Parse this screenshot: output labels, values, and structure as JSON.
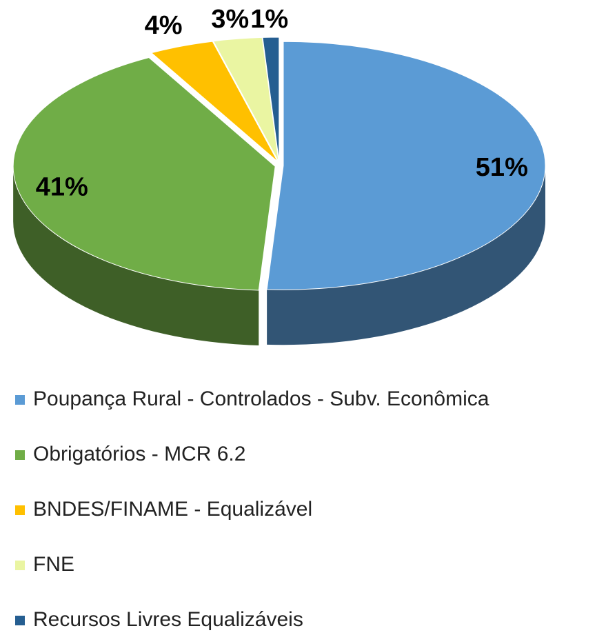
{
  "chart_data": {
    "type": "pie",
    "categories": [
      "Poupança Rural - Controlados - Subv. Econômica",
      "Obrigatórios - MCR 6.2",
      "BNDES/FINAME - Equalizável",
      "FNE",
      "Recursos Livres Equalizáveis"
    ],
    "values": [
      51,
      41,
      4,
      3,
      1
    ],
    "value_labels": [
      "51%",
      "41%",
      "4%",
      "3%",
      "1%"
    ],
    "colors": [
      "#5b9bd5",
      "#70ad47",
      "#ffc000",
      "#eaf5a2",
      "#255e91"
    ],
    "legend": "bottom"
  }
}
